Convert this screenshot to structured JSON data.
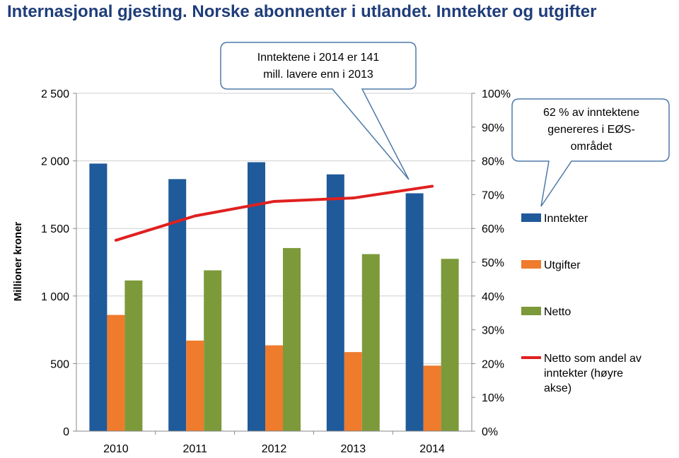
{
  "page": {
    "title": "Internasjonal gjesting. Norske abonnenter i utlandet. Inntekter og utgifter"
  },
  "chart_data": {
    "type": "bar",
    "title": "Internasjonal gjesting. Norske abonnenter i utlandet. Inntekter og utgifter",
    "xlabel": "",
    "ylabel": "Millioner kroner",
    "ylim": [
      0,
      2500
    ],
    "y2lim": [
      0,
      1
    ],
    "categories": [
      "2010",
      "2011",
      "2012",
      "2013",
      "2014"
    ],
    "yticks": [
      "0",
      "500",
      "1 000",
      "1 500",
      "2 000",
      "2 500"
    ],
    "y2ticks": [
      "0%",
      "10%",
      "20%",
      "30%",
      "40%",
      "50%",
      "60%",
      "70%",
      "80%",
      "90%",
      "100%"
    ],
    "grid": true,
    "legend_position": "right",
    "series": [
      {
        "name": "Inntekter",
        "type": "bar",
        "axis": "left",
        "color": "#1f5a9a",
        "values": [
          1980,
          1865,
          1990,
          1900,
          1760
        ]
      },
      {
        "name": "Utgifter",
        "type": "bar",
        "axis": "left",
        "color": "#ef7b2d",
        "values": [
          860,
          670,
          635,
          585,
          485
        ]
      },
      {
        "name": "Netto",
        "type": "bar",
        "axis": "left",
        "color": "#7c9a3a",
        "values": [
          1115,
          1190,
          1355,
          1310,
          1275
        ]
      },
      {
        "name": "Netto som andel av inntekter (høyre akse)",
        "type": "line",
        "axis": "right",
        "color": "#e02020",
        "values": [
          0.565,
          0.637,
          0.68,
          0.69,
          0.725
        ]
      }
    ],
    "annotations": [
      {
        "name": "callout-2014",
        "text": "Inntektene i 2014 er 141 mill. lavere enn i 2013"
      },
      {
        "name": "callout-eos",
        "text": "62 % av inntektene genereres i EØS-området"
      }
    ]
  }
}
